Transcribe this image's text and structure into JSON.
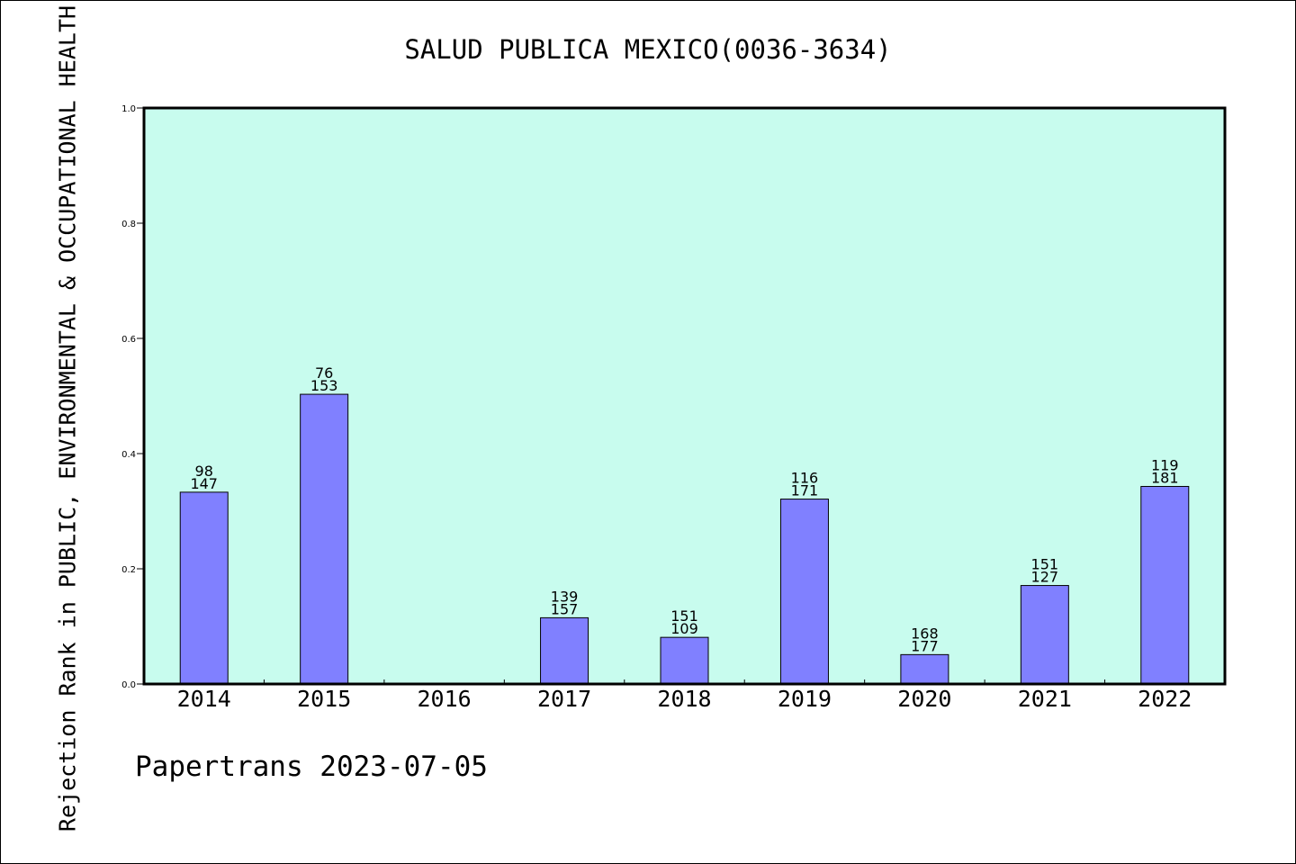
{
  "chart_data": {
    "type": "bar",
    "title": "SALUD PUBLICA MEXICO(0036-3634)",
    "xlabel": "",
    "ylabel": "Rejection Rank in PUBLIC, ENVIRONMENTAL & OCCUPATIONAL HEALTH",
    "ylim": [
      0,
      1.0
    ],
    "yticks": [
      "0.0",
      "0.2",
      "0.4",
      "0.6",
      "0.8",
      "1.0"
    ],
    "categories": [
      "2014",
      "2015",
      "2016",
      "2017",
      "2018",
      "2019",
      "2020",
      "2021",
      "2022"
    ],
    "values": [
      0.333,
      0.503,
      null,
      0.115,
      0.081,
      0.321,
      0.051,
      0.171,
      0.343
    ],
    "labels_top": [
      "98",
      "76",
      "",
      "139",
      "151",
      "116",
      "168",
      "151",
      "119"
    ],
    "labels_bottom": [
      "147",
      "153",
      "",
      "157",
      "109",
      "171",
      "177",
      "127",
      "181"
    ],
    "grid": false,
    "colors": {
      "plot_background": "#c8fcee",
      "bar_fill": "#8080ff",
      "bar_stroke": "#000000"
    }
  },
  "footer": "Papertrans 2023-07-05"
}
